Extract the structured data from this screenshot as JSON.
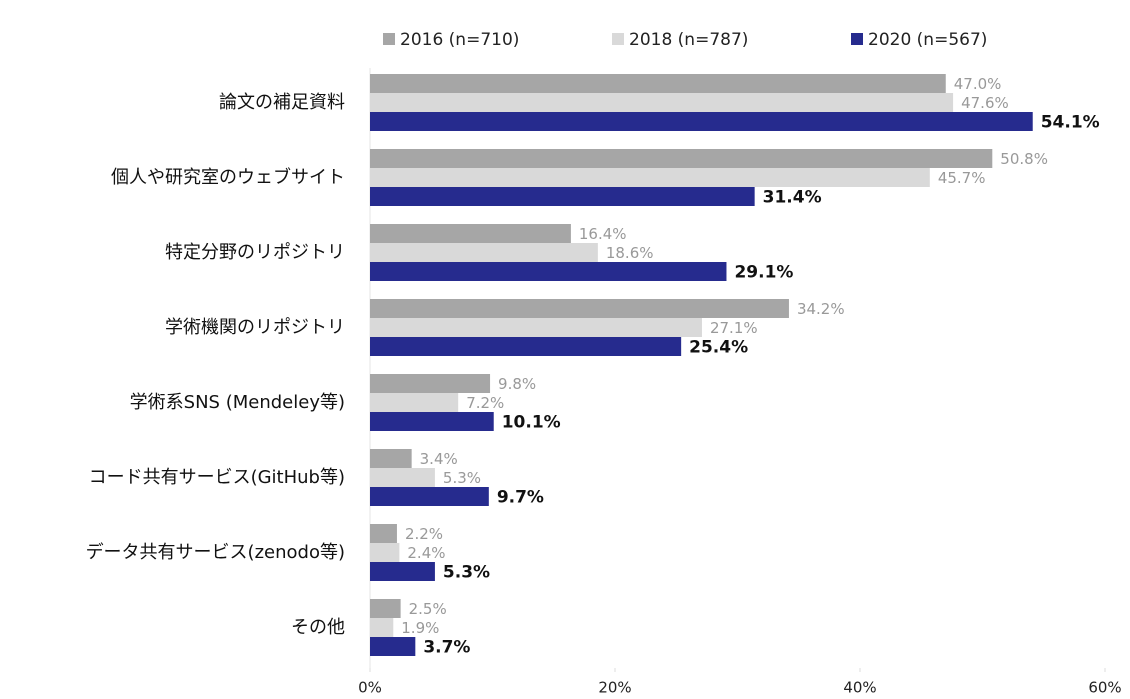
{
  "chart_data": {
    "type": "barh",
    "categories": [
      "論文の補足資料",
      "個人や研究室のウェブサイト",
      "特定分野のリポジトリ",
      "学術機関のリポジトリ",
      "学術系SNS (Mendeley等)",
      "コード共有サービス(GitHub等)",
      "データ共有サービス(zenodo等)",
      "その他"
    ],
    "series": [
      {
        "name": "2016 (n=710)",
        "color": "#a6a6a6",
        "values": [
          47.0,
          50.8,
          16.4,
          34.2,
          9.8,
          3.4,
          2.2,
          2.5
        ],
        "value_labels": [
          "47.0%",
          "50.8%",
          "16.4%",
          "34.2%",
          "9.8%",
          "3.4%",
          "2.2%",
          "2.5%"
        ]
      },
      {
        "name": "2018 (n=787)",
        "color": "#d9d9d9",
        "values": [
          47.6,
          45.7,
          18.6,
          27.1,
          7.2,
          5.3,
          2.4,
          1.9
        ],
        "value_labels": [
          "47.6%",
          "45.7%",
          "18.6%",
          "27.1%",
          "7.2%",
          "5.3%",
          "2.4%",
          "1.9%"
        ]
      },
      {
        "name": "2020 (n=567)",
        "color": "#262b8e",
        "values": [
          54.1,
          31.4,
          29.1,
          25.4,
          10.1,
          9.7,
          5.3,
          3.7
        ],
        "value_labels": [
          "54.1%",
          "31.4%",
          "29.1%",
          "25.4%",
          "10.1%",
          "9.7%",
          "5.3%",
          "3.7%"
        ]
      }
    ],
    "xlim": [
      0,
      60
    ],
    "xticks": [
      {
        "value": 0,
        "label": "0%"
      },
      {
        "value": 20,
        "label": "20%"
      },
      {
        "value": 40,
        "label": "40%"
      },
      {
        "value": 60,
        "label": "60%"
      }
    ],
    "legend": "top"
  }
}
